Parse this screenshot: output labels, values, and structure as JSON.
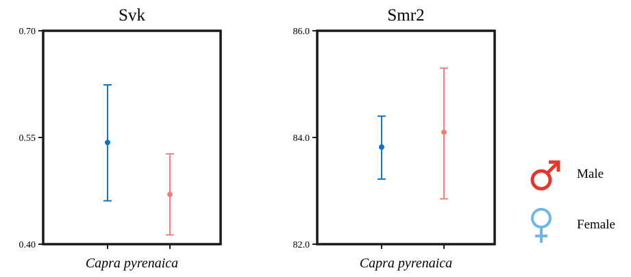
{
  "chart_data": [
    {
      "type": "errorbar",
      "title": "Svk",
      "xlabel": "",
      "ylabel": "",
      "category_label": "Capra pyrenaica",
      "ylim": [
        0.4,
        0.7
      ],
      "yticks": [
        "0.70",
        "0.55",
        "0.40"
      ],
      "ytick_values": [
        0.7,
        0.55,
        0.4
      ],
      "series": [
        {
          "name": "Male",
          "color": "#0a74c8",
          "mean": 0.543,
          "low": 0.461,
          "high": 0.624
        },
        {
          "name": "Female",
          "color": "#f0807a",
          "mean": 0.47,
          "low": 0.413,
          "high": 0.527
        }
      ],
      "grid": false
    },
    {
      "type": "errorbar",
      "title": "Smr2",
      "xlabel": "",
      "ylabel": "",
      "category_label": "Capra pyrenaica",
      "ylim": [
        82.0,
        86.0
      ],
      "yticks": [
        "86.0",
        "84.0",
        "82.0"
      ],
      "ytick_values": [
        86.0,
        84.0,
        82.0
      ],
      "series": [
        {
          "name": "Male",
          "color": "#0a74c8",
          "mean": 83.82,
          "low": 83.22,
          "high": 84.4
        },
        {
          "name": "Female",
          "color": "#f0807a",
          "mean": 84.1,
          "low": 82.85,
          "high": 85.3
        }
      ],
      "grid": false
    }
  ],
  "legend": {
    "items": [
      {
        "label": "Male",
        "icon": "male-symbol-icon",
        "color": "#e03a2f"
      },
      {
        "label": "Female",
        "icon": "female-symbol-icon",
        "color": "#6db7e6"
      }
    ]
  }
}
